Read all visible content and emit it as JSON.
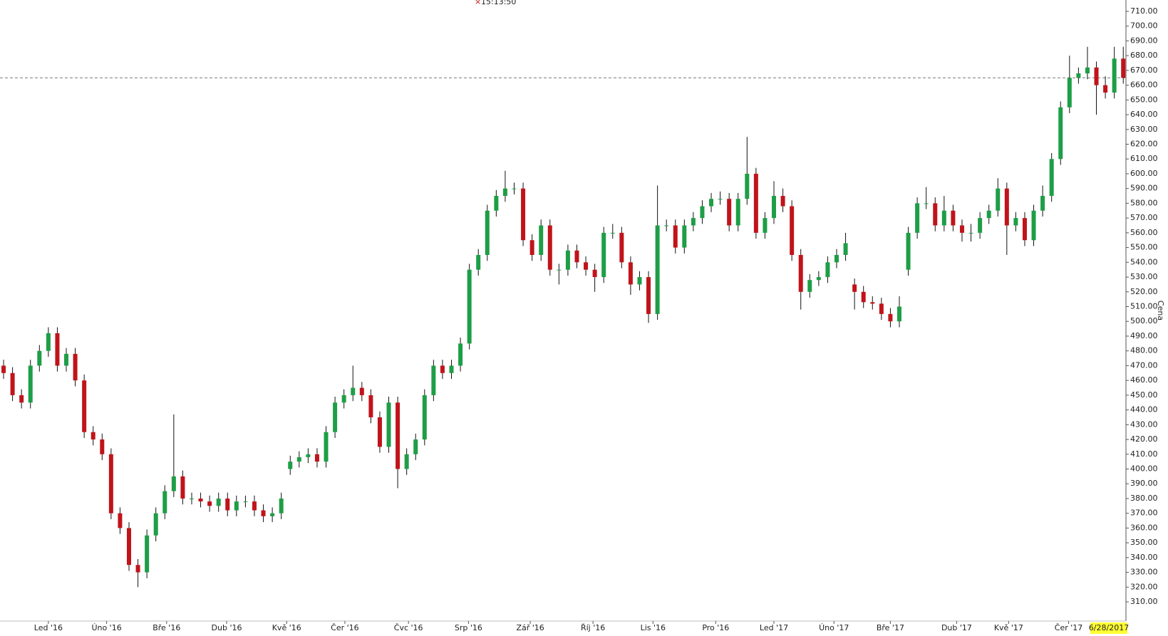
{
  "chart_data": {
    "type": "candlestick",
    "timestamp": "15:13:50",
    "y_axis_title": "Cena",
    "date_label": "6/28/2017",
    "price_line": 665,
    "up_color": "#1e9e46",
    "down_color": "#c0141a",
    "xlim": [
      -0.4,
      125.3
    ],
    "ylim": [
      297,
      717.7
    ],
    "xticks": [
      {
        "value": 5.0,
        "label": "Led '16"
      },
      {
        "value": 11.5,
        "label": "Úno '16"
      },
      {
        "value": 18.2,
        "label": "Bře '16"
      },
      {
        "value": 24.9,
        "label": "Dub '16"
      },
      {
        "value": 31.6,
        "label": "Kvě '16"
      },
      {
        "value": 38.1,
        "label": "Čer '16"
      },
      {
        "value": 45.2,
        "label": "Čvc '16"
      },
      {
        "value": 51.9,
        "label": "Srp '16"
      },
      {
        "value": 58.8,
        "label": "Zář '16"
      },
      {
        "value": 65.8,
        "label": "Říj '16"
      },
      {
        "value": 72.5,
        "label": "Lis '16"
      },
      {
        "value": 79.5,
        "label": "Pro '16"
      },
      {
        "value": 86.0,
        "label": "Led '17"
      },
      {
        "value": 92.7,
        "label": "Úno '17"
      },
      {
        "value": 99.0,
        "label": "Bře '17"
      },
      {
        "value": 106.4,
        "label": "Dub '17"
      },
      {
        "value": 112.2,
        "label": "Kvě '17"
      },
      {
        "value": 118.9,
        "label": "Čer '17"
      }
    ],
    "yticks": [
      {
        "value": 310,
        "label": "310.00"
      },
      {
        "value": 320,
        "label": "320.00"
      },
      {
        "value": 330,
        "label": "330.00"
      },
      {
        "value": 340,
        "label": "340.00"
      },
      {
        "value": 350,
        "label": "350.00"
      },
      {
        "value": 360,
        "label": "360.00"
      },
      {
        "value": 370,
        "label": "370.00"
      },
      {
        "value": 380,
        "label": "380.00"
      },
      {
        "value": 390,
        "label": "390.00"
      },
      {
        "value": 400,
        "label": "400.00"
      },
      {
        "value": 410,
        "label": "410.00"
      },
      {
        "value": 420,
        "label": "420.00"
      },
      {
        "value": 430,
        "label": "430.00"
      },
      {
        "value": 440,
        "label": "440.00"
      },
      {
        "value": 450,
        "label": "450.00"
      },
      {
        "value": 460,
        "label": "460.00"
      },
      {
        "value": 470,
        "label": "470.00"
      },
      {
        "value": 480,
        "label": "480.00"
      },
      {
        "value": 490,
        "label": "490.00"
      },
      {
        "value": 500,
        "label": "500.00"
      },
      {
        "value": 510,
        "label": "510.00"
      },
      {
        "value": 520,
        "label": "520.00"
      },
      {
        "value": 530,
        "label": "530.00"
      },
      {
        "value": 540,
        "label": "540.00"
      },
      {
        "value": 550,
        "label": "550.00"
      },
      {
        "value": 560,
        "label": "560.00"
      },
      {
        "value": 570,
        "label": "570.00"
      },
      {
        "value": 580,
        "label": "580.00"
      },
      {
        "value": 590,
        "label": "590.00"
      },
      {
        "value": 600,
        "label": "600.00"
      },
      {
        "value": 610,
        "label": "610.00"
      },
      {
        "value": 620,
        "label": "620.00"
      },
      {
        "value": 630,
        "label": "630.00"
      },
      {
        "value": 640,
        "label": "640.00"
      },
      {
        "value": 650,
        "label": "650.00"
      },
      {
        "value": 660,
        "label": "660.00"
      },
      {
        "value": 670,
        "label": "670.00"
      },
      {
        "value": 680,
        "label": "680.00"
      },
      {
        "value": 690,
        "label": "690.00"
      },
      {
        "value": 700,
        "label": "700.00"
      },
      {
        "value": 710,
        "label": "710.00"
      }
    ],
    "open": [
      470,
      465,
      450,
      445,
      470,
      480,
      492,
      470,
      478,
      460,
      425,
      420,
      410,
      370,
      360,
      335,
      330,
      355,
      370,
      385,
      395,
      380,
      380,
      378,
      375,
      380,
      372,
      378,
      378,
      372,
      368,
      370,
      400,
      405,
      408,
      410,
      405,
      425,
      445,
      450,
      455,
      450,
      435,
      415,
      445,
      400,
      410,
      420,
      450,
      470,
      465,
      470,
      485,
      535,
      545,
      575,
      585,
      590,
      590,
      555,
      545,
      565,
      535,
      535,
      548,
      540,
      535,
      530,
      560,
      560,
      540,
      525,
      530,
      505,
      565,
      565,
      550,
      565,
      570,
      578,
      583,
      583,
      565,
      583,
      600,
      560,
      570,
      585,
      578,
      545,
      520,
      528,
      530,
      540,
      545,
      525,
      520,
      513,
      512,
      505,
      500,
      535,
      560,
      580,
      580,
      565,
      575,
      565,
      560,
      560,
      570,
      575,
      590,
      565,
      570,
      555,
      575,
      585,
      610,
      645,
      665,
      668,
      672,
      660,
      655,
      678
    ],
    "high": [
      474,
      469,
      454,
      474,
      484,
      496,
      496,
      482,
      482,
      464,
      429,
      424,
      414,
      374,
      364,
      339,
      359,
      374,
      389,
      437,
      399,
      384,
      384,
      382,
      384,
      384,
      382,
      382,
      382,
      376,
      374,
      384,
      409,
      412,
      414,
      414,
      429,
      449,
      454,
      470,
      459,
      454,
      439,
      449,
      449,
      414,
      424,
      454,
      474,
      474,
      474,
      489,
      539,
      549,
      579,
      589,
      602,
      594,
      594,
      559,
      569,
      569,
      539,
      552,
      552,
      544,
      539,
      564,
      566,
      564,
      544,
      534,
      534,
      592,
      569,
      569,
      569,
      574,
      582,
      587,
      588,
      587,
      587,
      625,
      604,
      574,
      595,
      590,
      582,
      549,
      532,
      534,
      544,
      549,
      560,
      529,
      524,
      517,
      516,
      509,
      517,
      564,
      584,
      591,
      584,
      585,
      579,
      569,
      566,
      574,
      579,
      597,
      594,
      574,
      574,
      579,
      592,
      614,
      649,
      680,
      672,
      686,
      676,
      666,
      686,
      686
    ],
    "low": [
      461,
      446,
      441,
      441,
      466,
      476,
      466,
      466,
      456,
      421,
      416,
      406,
      366,
      356,
      331,
      320,
      326,
      351,
      366,
      381,
      376,
      376,
      374,
      371,
      371,
      368,
      368,
      374,
      368,
      364,
      364,
      366,
      396,
      401,
      404,
      401,
      401,
      421,
      441,
      446,
      446,
      431,
      411,
      411,
      387,
      396,
      406,
      416,
      446,
      461,
      461,
      466,
      481,
      531,
      541,
      571,
      581,
      586,
      551,
      541,
      541,
      531,
      525,
      531,
      536,
      531,
      520,
      526,
      556,
      536,
      518,
      521,
      499,
      501,
      561,
      546,
      546,
      561,
      566,
      574,
      579,
      561,
      561,
      579,
      556,
      556,
      566,
      574,
      541,
      508,
      516,
      524,
      526,
      536,
      541,
      508,
      509,
      508,
      501,
      496,
      496,
      531,
      556,
      576,
      561,
      561,
      561,
      554,
      554,
      556,
      566,
      571,
      545,
      561,
      551,
      551,
      571,
      581,
      606,
      641,
      661,
      664,
      640,
      651,
      651,
      661
    ],
    "close": [
      465,
      450,
      445,
      470,
      480,
      492,
      470,
      478,
      460,
      425,
      420,
      410,
      370,
      360,
      335,
      330,
      355,
      370,
      385,
      395,
      380,
      380,
      378,
      375,
      380,
      372,
      378,
      378,
      372,
      368,
      370,
      380,
      405,
      408,
      410,
      405,
      425,
      445,
      450,
      455,
      450,
      435,
      415,
      445,
      400,
      410,
      420,
      450,
      470,
      465,
      470,
      485,
      535,
      545,
      575,
      585,
      590,
      590,
      555,
      545,
      565,
      535,
      535,
      548,
      540,
      535,
      530,
      560,
      560,
      540,
      525,
      530,
      505,
      565,
      565,
      550,
      565,
      570,
      578,
      583,
      583,
      565,
      583,
      600,
      560,
      570,
      585,
      578,
      545,
      520,
      528,
      530,
      540,
      545,
      553,
      520,
      513,
      512,
      505,
      500,
      510,
      560,
      580,
      580,
      565,
      575,
      565,
      560,
      560,
      570,
      575,
      590,
      565,
      570,
      555,
      575,
      585,
      610,
      645,
      665,
      668,
      672,
      660,
      655,
      678,
      665
    ]
  }
}
